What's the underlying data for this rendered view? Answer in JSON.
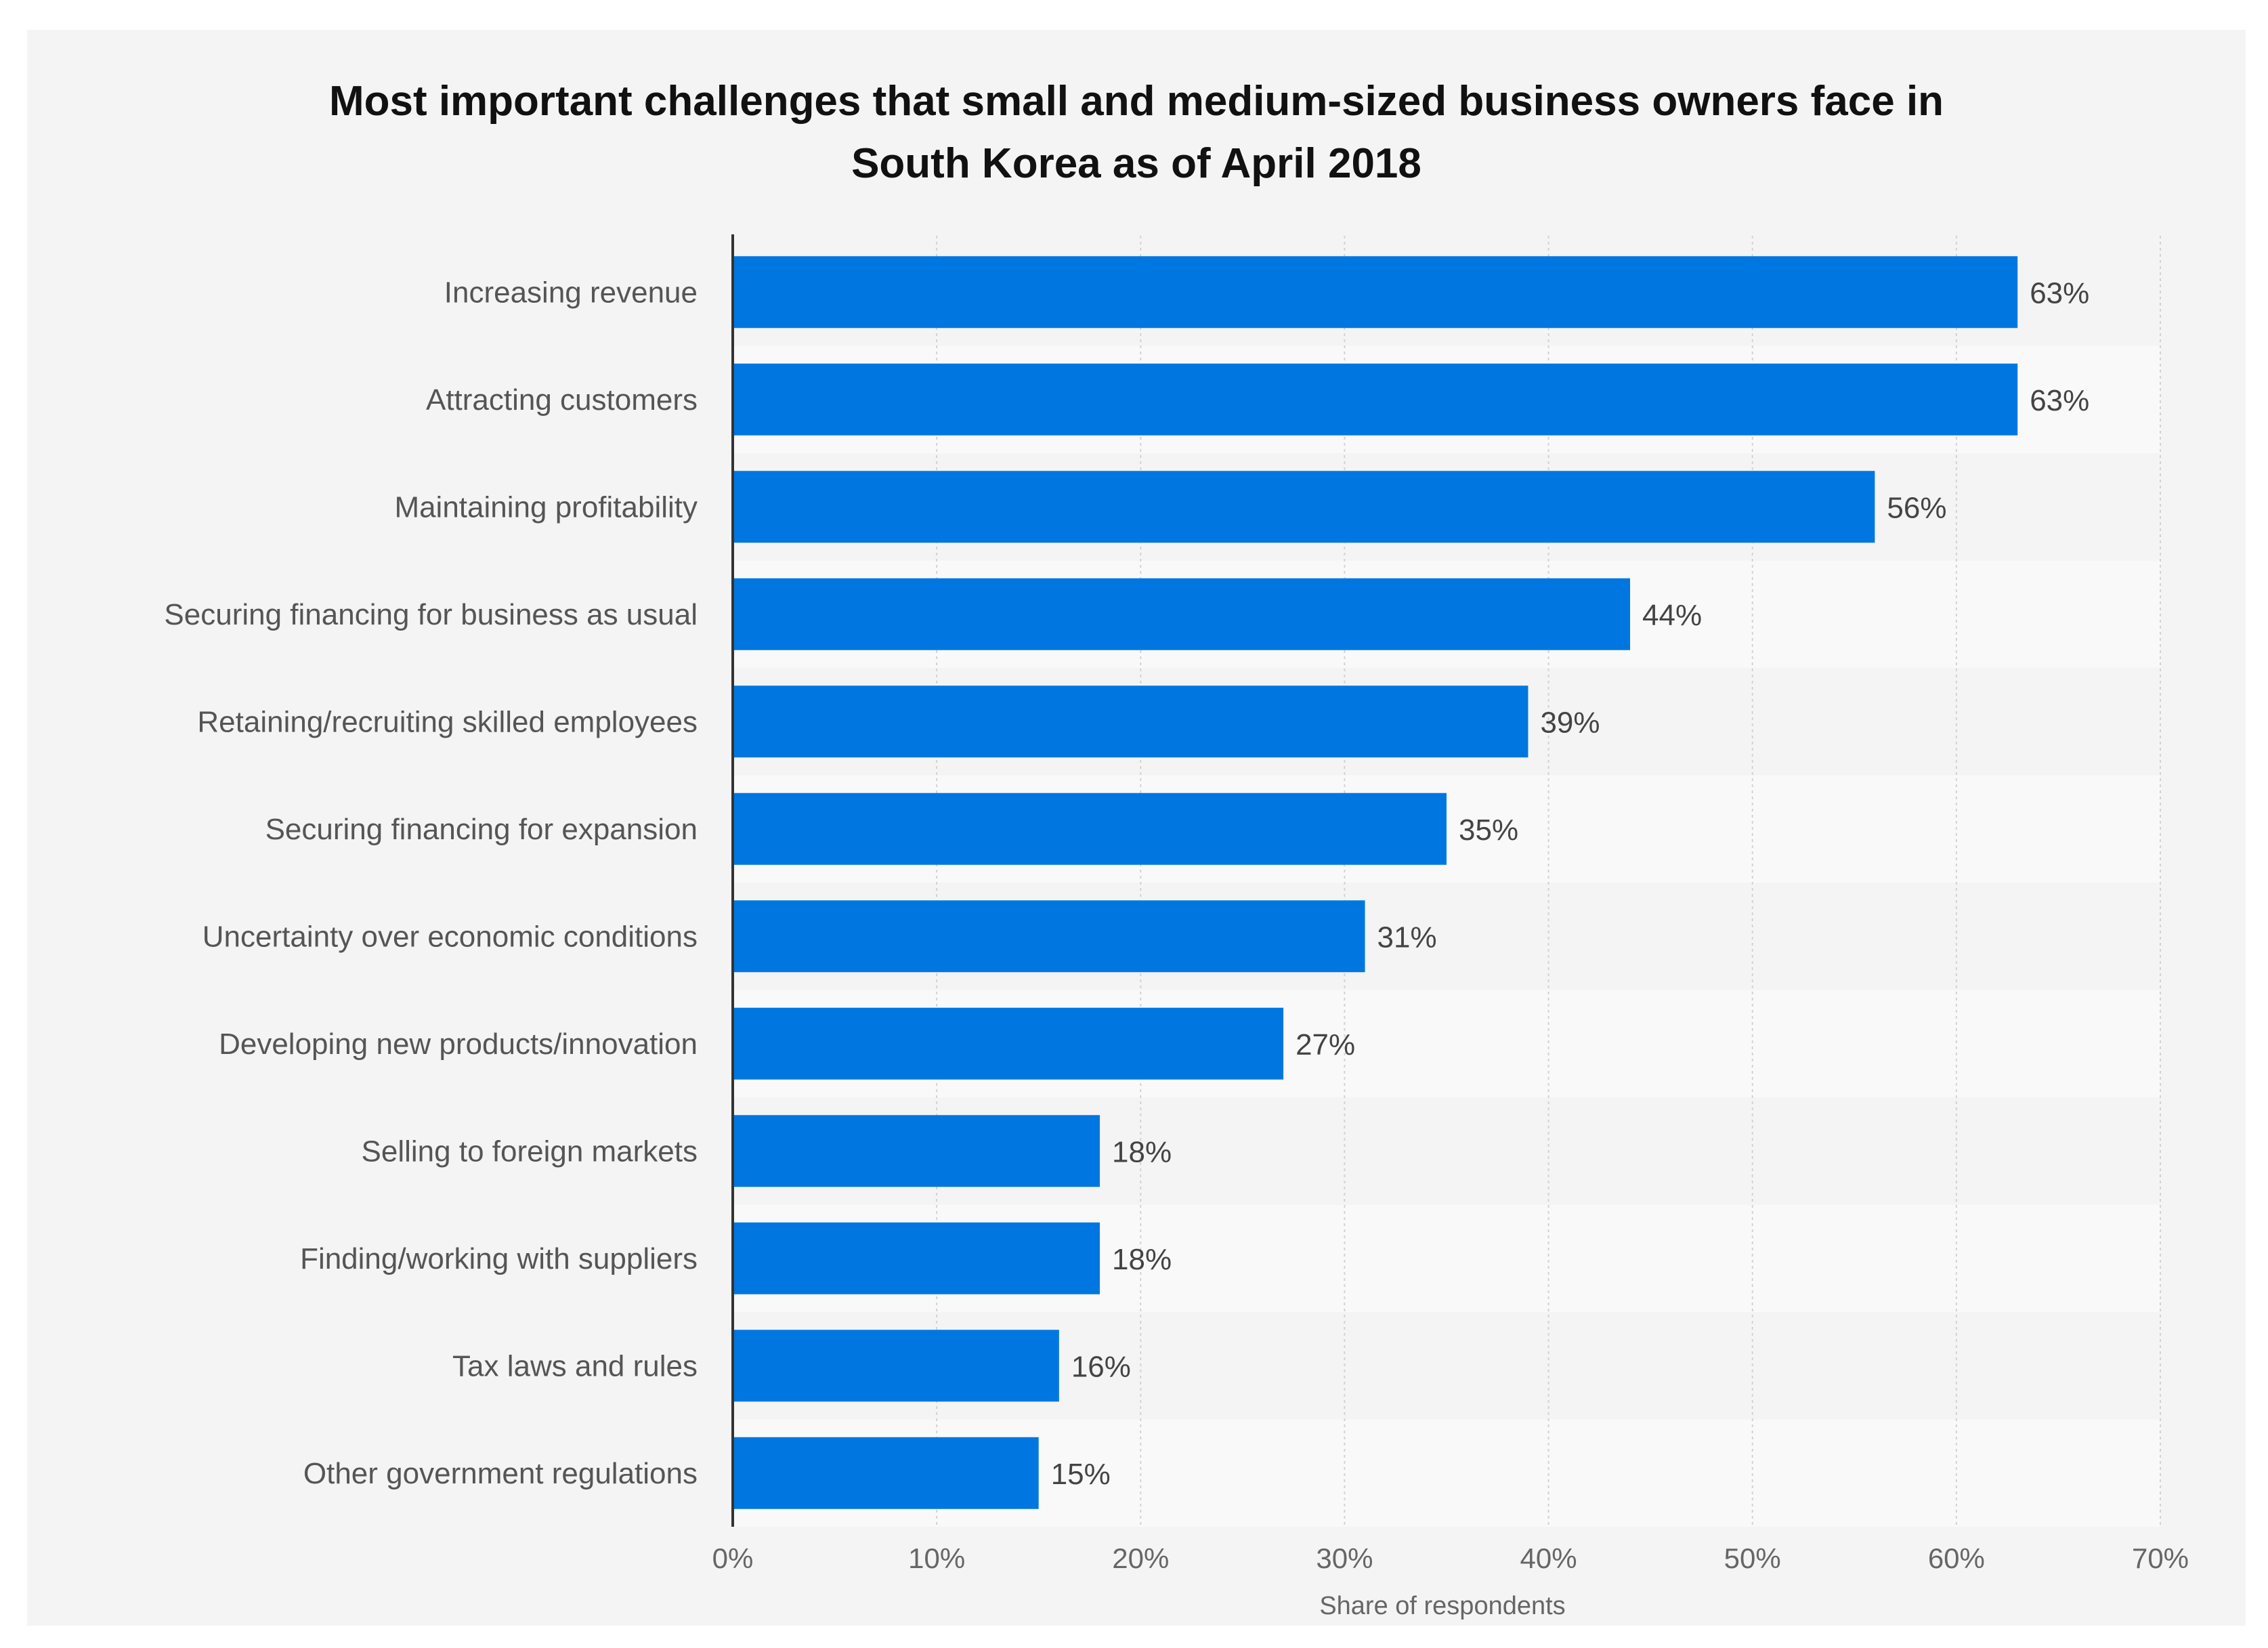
{
  "chart_data": {
    "type": "bar",
    "orientation": "horizontal",
    "title": "Most important challenges that small and medium-sized business owners face in South Korea as of April 2018",
    "title_lines": [
      "Most important challenges that small and medium-sized business owners face in",
      "South Korea as of April 2018"
    ],
    "categories": [
      "Increasing revenue",
      "Attracting customers",
      "Maintaining profitability",
      "Securing financing for business as usual",
      "Retaining/recruiting skilled employees",
      "Securing financing for expansion",
      "Uncertainty over economic conditions",
      "Developing new products/innovation",
      "Selling to foreign markets",
      "Finding/working with suppliers",
      "Tax laws and rules",
      "Other government regulations"
    ],
    "values": [
      63,
      63,
      56,
      44,
      39,
      35,
      31,
      27,
      18,
      18,
      16,
      15
    ],
    "value_labels": [
      "63%",
      "63%",
      "56%",
      "44%",
      "39%",
      "35%",
      "31%",
      "27%",
      "18%",
      "18%",
      "16%",
      "15%"
    ],
    "xlabel": "Share of respondents",
    "ylabel": "",
    "xlim": [
      0,
      70
    ],
    "ticks": [
      0,
      10,
      20,
      30,
      40,
      50,
      60,
      70
    ],
    "tick_labels": [
      "0%",
      "10%",
      "20%",
      "30%",
      "40%",
      "50%",
      "60%",
      "70%"
    ],
    "grid": true,
    "bar_color": "#0077e0"
  }
}
